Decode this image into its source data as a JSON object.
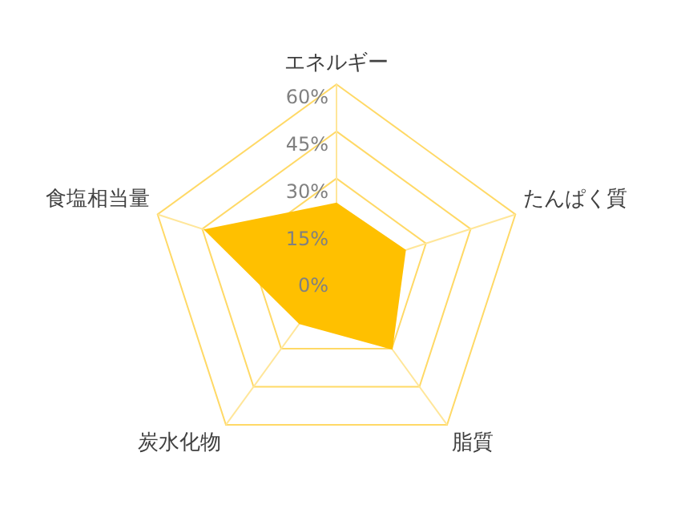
{
  "chart_data": {
    "type": "radar",
    "categories": [
      "エネルギー",
      "たんぱく質",
      "脂質",
      "炭水化物",
      "食塩相当量"
    ],
    "series": [
      {
        "color": "#ffc000",
        "values": [
          22,
          23,
          30,
          20,
          44
        ]
      }
    ],
    "ylim": [
      0,
      60
    ],
    "yticks": [
      {
        "value": 0,
        "label": "0%"
      },
      {
        "value": 15,
        "label": "15%"
      },
      {
        "value": 30,
        "label": "30%"
      },
      {
        "value": 45,
        "label": "45%"
      },
      {
        "value": 60,
        "label": "60%"
      }
    ],
    "grid": true,
    "legend": false,
    "marker": "none"
  }
}
